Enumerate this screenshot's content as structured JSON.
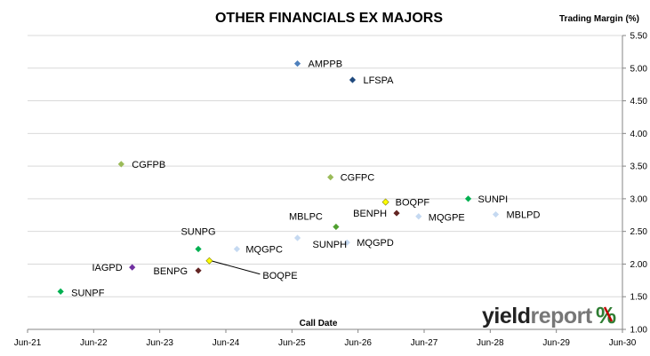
{
  "chart_data": {
    "type": "scatter",
    "title": "OTHER FINANCIALS EX MAJORS",
    "ylabel": "Trading Margin (%)",
    "xlabel": "Call Date",
    "xlim": [
      "2021-06",
      "2030-06"
    ],
    "ylim": [
      1.0,
      5.5
    ],
    "x_ticks": [
      "Jun-21",
      "Jun-22",
      "Jun-23",
      "Jun-24",
      "Jun-25",
      "Jun-26",
      "Jun-27",
      "Jun-28",
      "Jun-29",
      "Jun-30"
    ],
    "y_ticks": [
      "1.00",
      "1.50",
      "2.00",
      "2.50",
      "3.00",
      "3.50",
      "4.00",
      "4.50",
      "5.00",
      "5.50"
    ],
    "grid": "horizontal",
    "y_axis_side": "right",
    "points": [
      {
        "label": "AMPPB",
        "x": "2025-07",
        "y": 5.07,
        "color": "#4f81bd"
      },
      {
        "label": "LFSPA",
        "x": "2026-05",
        "y": 4.82,
        "color": "#1f497d"
      },
      {
        "label": "CGFPB",
        "x": "2022-11",
        "y": 3.53,
        "color": "#9bbb59"
      },
      {
        "label": "CGFPC",
        "x": "2026-01",
        "y": 3.33,
        "color": "#9bbb59"
      },
      {
        "label": "SUNPI",
        "x": "2028-02",
        "y": 3.0,
        "color": "#00b050"
      },
      {
        "label": "BOQPF",
        "x": "2026-11",
        "y": 2.95,
        "color": "#ffff00"
      },
      {
        "label": "BENPH",
        "x": "2027-01",
        "y": 2.78,
        "color": "#632523"
      },
      {
        "label": "MQGPE",
        "x": "2027-05",
        "y": 2.73,
        "color": "#c5d9f1"
      },
      {
        "label": "MBLPD",
        "x": "2028-07",
        "y": 2.76,
        "color": "#c5d9f1"
      },
      {
        "label": "MBLPC",
        "x": "2026-02",
        "y": 2.57,
        "color": "#4f9f2f"
      },
      {
        "label": "SUNPH",
        "x": "2025-07",
        "y": 2.4,
        "color": "#c5d9f1"
      },
      {
        "label": "MQGPD",
        "x": "2026-04",
        "y": 2.33,
        "color": "#c5d9f1"
      },
      {
        "label": "SUNPG",
        "x": "2024-01",
        "y": 2.23,
        "color": "#00b050"
      },
      {
        "label": "MQGPC",
        "x": "2024-08",
        "y": 2.23,
        "color": "#c5d9f1"
      },
      {
        "label": "BOQPE",
        "x": "2024-03",
        "y": 2.05,
        "color": "#ffff00"
      },
      {
        "label": "IAGPD",
        "x": "2023-01",
        "y": 1.95,
        "color": "#7030a0"
      },
      {
        "label": "BENPG",
        "x": "2024-01",
        "y": 1.9,
        "color": "#632523"
      },
      {
        "label": "SUNPF",
        "x": "2021-12",
        "y": 1.58,
        "color": "#00b050"
      }
    ]
  },
  "logo": {
    "text_a": "yield",
    "text_b": "report",
    "symbol": "%"
  }
}
